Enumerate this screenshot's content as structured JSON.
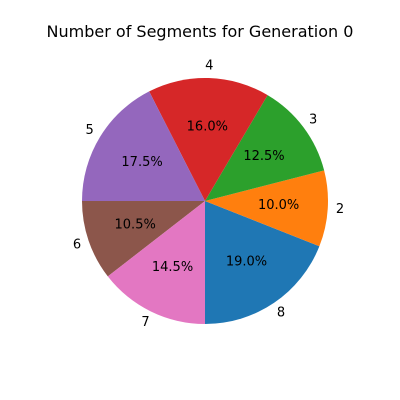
{
  "chart_data": {
    "type": "pie",
    "title": "Number of Segments for Generation 0",
    "start_angle_deg": 270,
    "direction": "counterclockwise",
    "slices": [
      {
        "label": "8",
        "value": 19.0,
        "pct_label": "19.0%",
        "color": "#1f77b4"
      },
      {
        "label": "2",
        "value": 10.0,
        "pct_label": "10.0%",
        "color": "#ff7f0e"
      },
      {
        "label": "3",
        "value": 12.5,
        "pct_label": "12.5%",
        "color": "#2ca02c"
      },
      {
        "label": "4",
        "value": 16.0,
        "pct_label": "16.0%",
        "color": "#d62728"
      },
      {
        "label": "5",
        "value": 17.5,
        "pct_label": "17.5%",
        "color": "#9467bd"
      },
      {
        "label": "6",
        "value": 10.5,
        "pct_label": "10.5%",
        "color": "#8c564b"
      },
      {
        "label": "7",
        "value": 14.5,
        "pct_label": "14.5%",
        "color": "#e377c2"
      }
    ]
  }
}
